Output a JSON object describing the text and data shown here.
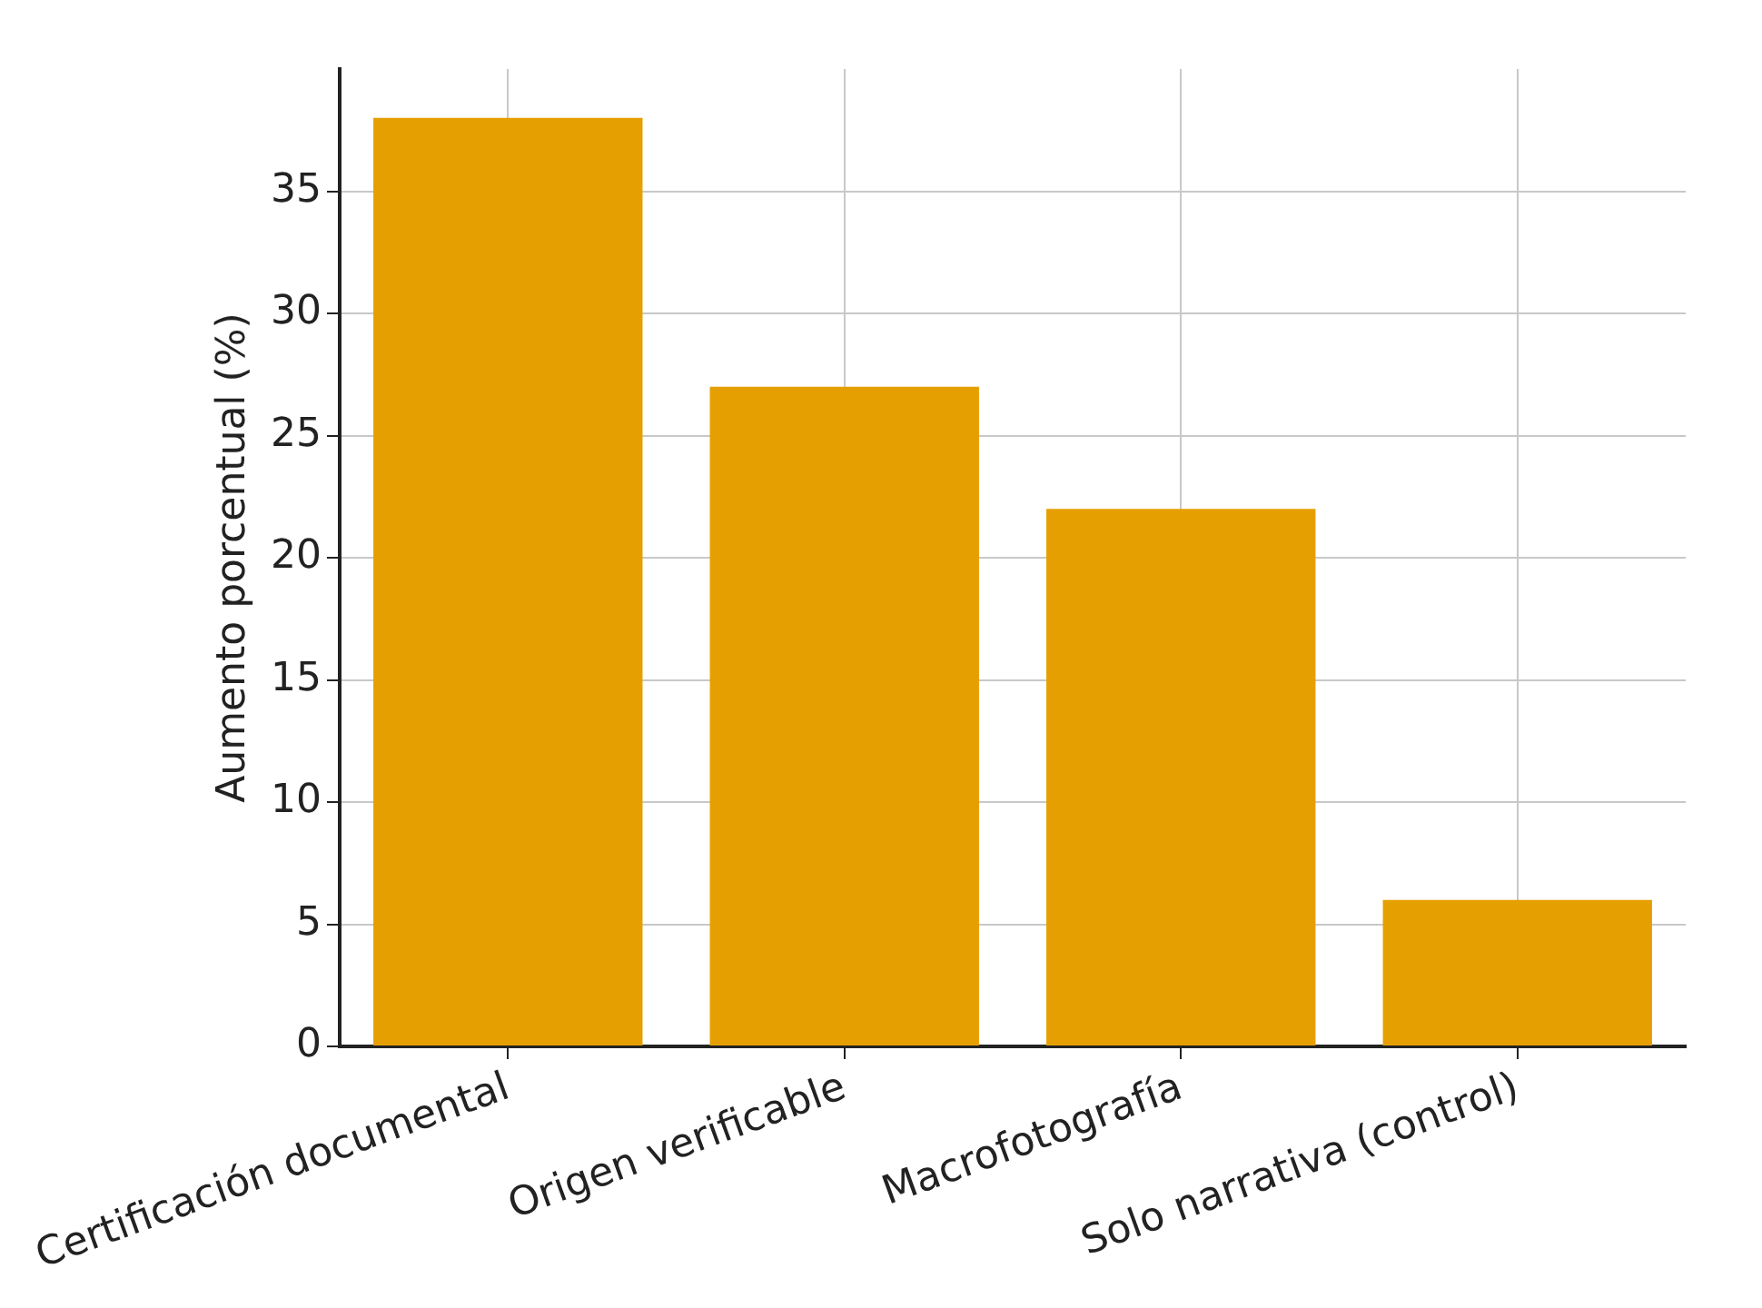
{
  "chart_data": {
    "type": "bar",
    "ylabel": "Aumento porcentual (%)",
    "categories": [
      "Certificación documental",
      "Origen verificable",
      "Macrofotografía",
      "Solo narrativa (control)"
    ],
    "values": [
      38,
      27,
      22,
      6
    ],
    "color": "#e69f00",
    "ylim": [
      0,
      40
    ],
    "yticks": [
      0,
      5,
      10,
      15,
      20,
      25,
      30,
      35
    ],
    "grid": true
  }
}
